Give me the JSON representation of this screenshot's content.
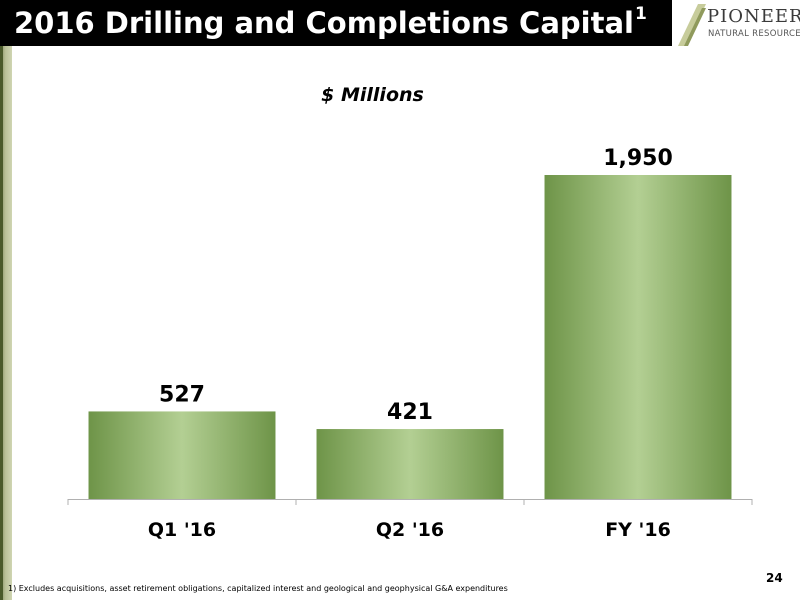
{
  "slide": {
    "title": "2016 Drilling and Completions Capital",
    "title_footnote_ref": "1",
    "subtitle": "$ Millions",
    "footnote": "1)  Excludes acquisitions, asset retirement obligations, capitalized interest and geological and geophysical G&A expenditures",
    "page_number": "24"
  },
  "logo": {
    "name": "PIONEER",
    "tagline": "NATURAL RESOURCES"
  },
  "colors": {
    "header": "#000000",
    "bar_dark": "#6e9448",
    "bar_light": "#b3cf93",
    "accent_sidebar": "#b9c097"
  },
  "chart_data": {
    "type": "bar",
    "title": "$ Millions",
    "categories": [
      "Q1 '16",
      "Q2 '16",
      "FY '16"
    ],
    "values": [
      527,
      421,
      1950
    ],
    "data_labels": [
      "527",
      "421",
      "1,950"
    ],
    "xlabel": "",
    "ylabel": "",
    "ylim": [
      0,
      1950
    ],
    "grid": false,
    "legend": "none"
  }
}
